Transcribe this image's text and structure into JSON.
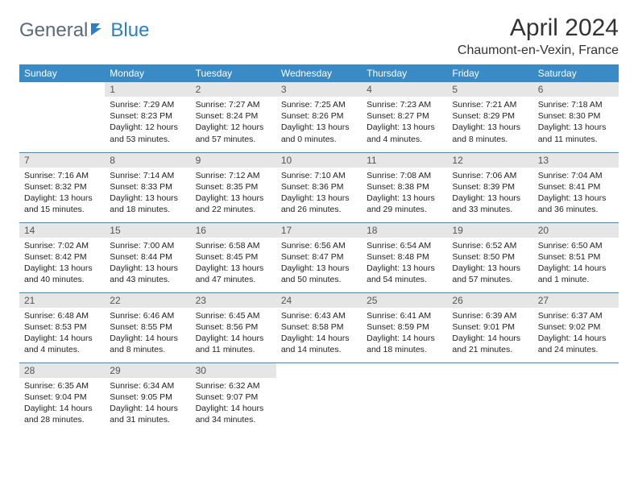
{
  "brand": {
    "general": "General",
    "blue": "Blue"
  },
  "title": "April 2024",
  "location": "Chaumont-en-Vexin, France",
  "colors": {
    "header_bg": "#3a8ac6",
    "header_text": "#ffffff",
    "daynum_bg": "#e6e6e6",
    "daynum_text": "#555555",
    "body_text": "#222222",
    "rule": "#3a8ac6",
    "logo_gray": "#5a6a7a",
    "logo_blue": "#2d7fc0"
  },
  "weekdays": [
    "Sunday",
    "Monday",
    "Tuesday",
    "Wednesday",
    "Thursday",
    "Friday",
    "Saturday"
  ],
  "weeks": [
    [
      null,
      {
        "num": "1",
        "sunrise": "7:29 AM",
        "sunset": "8:23 PM",
        "daylight": "12 hours and 53 minutes."
      },
      {
        "num": "2",
        "sunrise": "7:27 AM",
        "sunset": "8:24 PM",
        "daylight": "12 hours and 57 minutes."
      },
      {
        "num": "3",
        "sunrise": "7:25 AM",
        "sunset": "8:26 PM",
        "daylight": "13 hours and 0 minutes."
      },
      {
        "num": "4",
        "sunrise": "7:23 AM",
        "sunset": "8:27 PM",
        "daylight": "13 hours and 4 minutes."
      },
      {
        "num": "5",
        "sunrise": "7:21 AM",
        "sunset": "8:29 PM",
        "daylight": "13 hours and 8 minutes."
      },
      {
        "num": "6",
        "sunrise": "7:18 AM",
        "sunset": "8:30 PM",
        "daylight": "13 hours and 11 minutes."
      }
    ],
    [
      {
        "num": "7",
        "sunrise": "7:16 AM",
        "sunset": "8:32 PM",
        "daylight": "13 hours and 15 minutes."
      },
      {
        "num": "8",
        "sunrise": "7:14 AM",
        "sunset": "8:33 PM",
        "daylight": "13 hours and 18 minutes."
      },
      {
        "num": "9",
        "sunrise": "7:12 AM",
        "sunset": "8:35 PM",
        "daylight": "13 hours and 22 minutes."
      },
      {
        "num": "10",
        "sunrise": "7:10 AM",
        "sunset": "8:36 PM",
        "daylight": "13 hours and 26 minutes."
      },
      {
        "num": "11",
        "sunrise": "7:08 AM",
        "sunset": "8:38 PM",
        "daylight": "13 hours and 29 minutes."
      },
      {
        "num": "12",
        "sunrise": "7:06 AM",
        "sunset": "8:39 PM",
        "daylight": "13 hours and 33 minutes."
      },
      {
        "num": "13",
        "sunrise": "7:04 AM",
        "sunset": "8:41 PM",
        "daylight": "13 hours and 36 minutes."
      }
    ],
    [
      {
        "num": "14",
        "sunrise": "7:02 AM",
        "sunset": "8:42 PM",
        "daylight": "13 hours and 40 minutes."
      },
      {
        "num": "15",
        "sunrise": "7:00 AM",
        "sunset": "8:44 PM",
        "daylight": "13 hours and 43 minutes."
      },
      {
        "num": "16",
        "sunrise": "6:58 AM",
        "sunset": "8:45 PM",
        "daylight": "13 hours and 47 minutes."
      },
      {
        "num": "17",
        "sunrise": "6:56 AM",
        "sunset": "8:47 PM",
        "daylight": "13 hours and 50 minutes."
      },
      {
        "num": "18",
        "sunrise": "6:54 AM",
        "sunset": "8:48 PM",
        "daylight": "13 hours and 54 minutes."
      },
      {
        "num": "19",
        "sunrise": "6:52 AM",
        "sunset": "8:50 PM",
        "daylight": "13 hours and 57 minutes."
      },
      {
        "num": "20",
        "sunrise": "6:50 AM",
        "sunset": "8:51 PM",
        "daylight": "14 hours and 1 minute."
      }
    ],
    [
      {
        "num": "21",
        "sunrise": "6:48 AM",
        "sunset": "8:53 PM",
        "daylight": "14 hours and 4 minutes."
      },
      {
        "num": "22",
        "sunrise": "6:46 AM",
        "sunset": "8:55 PM",
        "daylight": "14 hours and 8 minutes."
      },
      {
        "num": "23",
        "sunrise": "6:45 AM",
        "sunset": "8:56 PM",
        "daylight": "14 hours and 11 minutes."
      },
      {
        "num": "24",
        "sunrise": "6:43 AM",
        "sunset": "8:58 PM",
        "daylight": "14 hours and 14 minutes."
      },
      {
        "num": "25",
        "sunrise": "6:41 AM",
        "sunset": "8:59 PM",
        "daylight": "14 hours and 18 minutes."
      },
      {
        "num": "26",
        "sunrise": "6:39 AM",
        "sunset": "9:01 PM",
        "daylight": "14 hours and 21 minutes."
      },
      {
        "num": "27",
        "sunrise": "6:37 AM",
        "sunset": "9:02 PM",
        "daylight": "14 hours and 24 minutes."
      }
    ],
    [
      {
        "num": "28",
        "sunrise": "6:35 AM",
        "sunset": "9:04 PM",
        "daylight": "14 hours and 28 minutes."
      },
      {
        "num": "29",
        "sunrise": "6:34 AM",
        "sunset": "9:05 PM",
        "daylight": "14 hours and 31 minutes."
      },
      {
        "num": "30",
        "sunrise": "6:32 AM",
        "sunset": "9:07 PM",
        "daylight": "14 hours and 34 minutes."
      },
      null,
      null,
      null,
      null
    ]
  ]
}
